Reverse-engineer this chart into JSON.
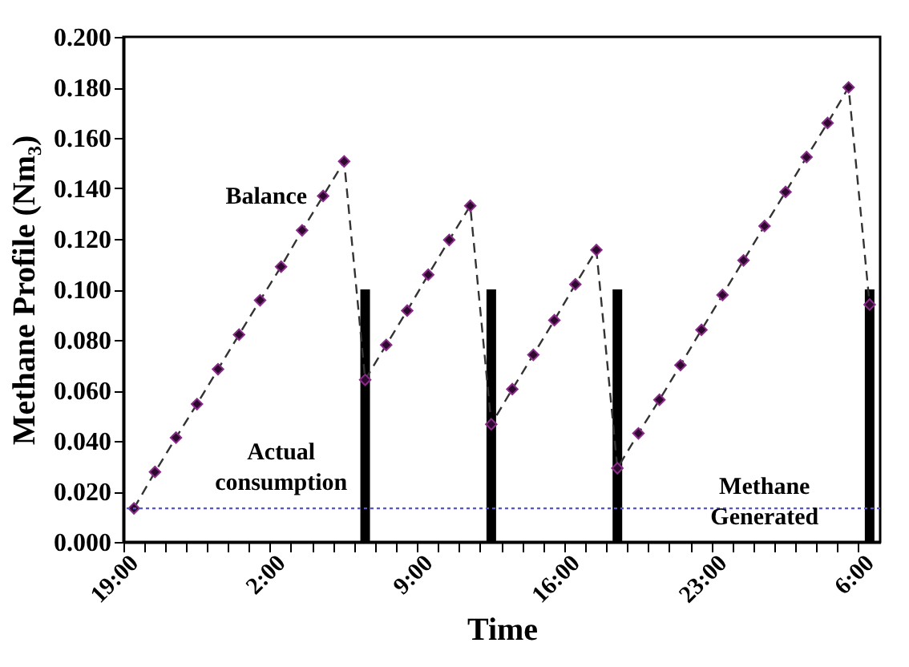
{
  "chart_data": {
    "type": "line",
    "xlabel": "Time",
    "ylabel": "Methane Profile (Nm₃)",
    "categories": [
      "19:00",
      null,
      null,
      null,
      null,
      null,
      null,
      "2:00",
      null,
      null,
      null,
      null,
      null,
      null,
      "9:00",
      null,
      null,
      null,
      null,
      null,
      null,
      "16:00",
      null,
      null,
      null,
      null,
      null,
      null,
      "23:00",
      null,
      null,
      null,
      null,
      null,
      null,
      "6:00"
    ],
    "ylim": [
      0,
      0.2
    ],
    "yticks": [
      {
        "value": 0,
        "label": "0.000"
      },
      {
        "value": 0.02,
        "label": "0.020"
      },
      {
        "value": 0.04,
        "label": "0.040"
      },
      {
        "value": 0.06,
        "label": "0.060"
      },
      {
        "value": 0.08,
        "label": "0.080"
      },
      {
        "value": 0.1,
        "label": "0.100"
      },
      {
        "value": 0.12,
        "label": "0.120"
      },
      {
        "value": 0.14,
        "label": "0.140"
      },
      {
        "value": 0.16,
        "label": "0.160"
      },
      {
        "value": 0.18,
        "label": "0.180"
      },
      {
        "value": 0.2,
        "label": "0.200"
      }
    ],
    "grid": false,
    "series": [
      {
        "type": "bar",
        "name": "Actual consumption",
        "color": "#000000",
        "values": [
          null,
          null,
          null,
          null,
          null,
          null,
          null,
          null,
          null,
          null,
          null,
          0.1,
          null,
          null,
          null,
          null,
          null,
          0.1,
          null,
          null,
          null,
          null,
          null,
          0.1,
          null,
          null,
          null,
          null,
          null,
          null,
          null,
          null,
          null,
          null,
          null,
          0.1
        ]
      },
      {
        "name": "Balance",
        "color": "#2d0a2d",
        "marker": "diamond",
        "line_style": "dashed",
        "values": [
          0.0133,
          0.0277,
          0.0413,
          0.0546,
          0.0684,
          0.0821,
          0.0957,
          0.109,
          0.1234,
          0.137,
          0.1507,
          0.0642,
          0.078,
          0.0916,
          0.1058,
          0.1196,
          0.1331,
          0.0466,
          0.0605,
          0.0741,
          0.0878,
          0.102,
          0.1156,
          0.0292,
          0.043,
          0.0563,
          0.07,
          0.084,
          0.0978,
          0.1115,
          0.1251,
          0.1386,
          0.1524,
          0.1659,
          0.18,
          0.094
        ]
      }
    ],
    "ref_lines": [
      {
        "axis": "y",
        "value": 0.0133,
        "label": "Methane Generated",
        "color": "#5555cc",
        "line_style": "dotted"
      }
    ]
  }
}
